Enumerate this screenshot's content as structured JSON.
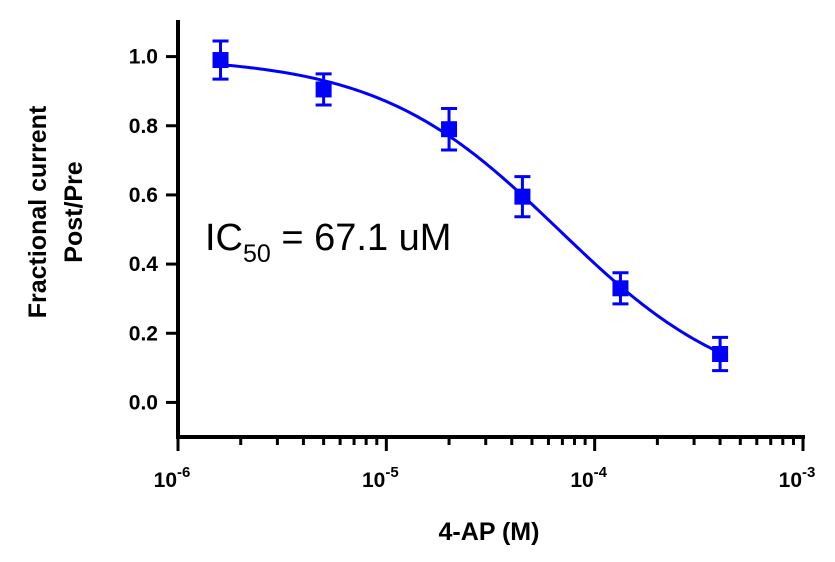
{
  "chart_data": {
    "type": "scatter",
    "xlabel": "4-AP (M)",
    "ylabel": [
      "Fractional current",
      "Post/Pre"
    ],
    "x_scale": "log",
    "xlim": [
      1e-06,
      0.001
    ],
    "ylim": [
      -0.1,
      1.1
    ],
    "x_ticks": [
      {
        "value": 1e-06,
        "base": "10",
        "exp": "-6"
      },
      {
        "value": 1e-05,
        "base": "10",
        "exp": "-5"
      },
      {
        "value": 0.0001,
        "base": "10",
        "exp": "-4"
      },
      {
        "value": 0.001,
        "base": "10",
        "exp": "-3"
      }
    ],
    "y_ticks": [
      {
        "value": 0.0,
        "label": "0.0"
      },
      {
        "value": 0.2,
        "label": "0.2"
      },
      {
        "value": 0.4,
        "label": "0.4"
      },
      {
        "value": 0.6,
        "label": "0.6"
      },
      {
        "value": 0.8,
        "label": "0.8"
      },
      {
        "value": 1.0,
        "label": "1.0"
      }
    ],
    "series": [
      {
        "color": "#0000ff",
        "marker": "square",
        "x": [
          1.6e-06,
          5e-06,
          2e-05,
          4.5e-05,
          0.000133,
          0.0004
        ],
        "y": [
          0.99,
          0.905,
          0.79,
          0.595,
          0.33,
          0.14
        ],
        "error": [
          0.055,
          0.045,
          0.06,
          0.058,
          0.045,
          0.048
        ]
      }
    ],
    "fit": {
      "model": "hill",
      "top": 1.0,
      "bottom": 0.0,
      "ic50": 6.71e-05,
      "hill": 1.0,
      "color": "#0000ff"
    },
    "annotation": {
      "prefix": "IC",
      "sub": "50",
      "suffix": " = 67.1 uM"
    }
  }
}
